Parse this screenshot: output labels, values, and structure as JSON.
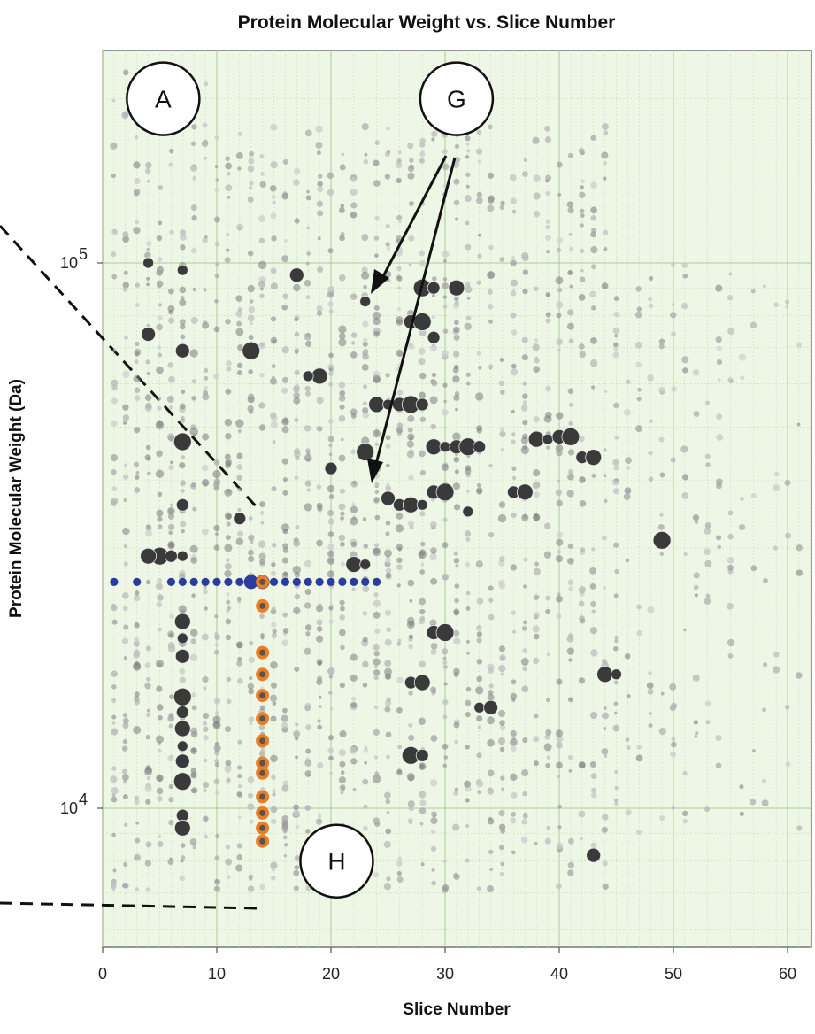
{
  "chart_data": {
    "type": "scatter",
    "title": "Protein Molecular Weight vs. Slice Number",
    "xlabel": "Slice Number",
    "ylabel": "Protein Molecular Weight (Da)",
    "xlim": [
      0,
      62
    ],
    "ylim": [
      5500,
      280000
    ],
    "y_scale": "log",
    "x_ticks": [
      "0",
      "10",
      "20",
      "30",
      "40",
      "50",
      "60"
    ],
    "y_ticks": [
      {
        "base": "10",
        "exp": "5",
        "value": 100000
      },
      {
        "base": "10",
        "exp": "4",
        "value": 10000
      }
    ],
    "grid": true,
    "background_color": "#eef6e6",
    "grid_color": "#c5e0b4",
    "colors": {
      "gray": "#9b9b9b",
      "dark": "#3a3a3a",
      "blue": "#2a3d9e",
      "orange": "#ee7d22"
    },
    "highlight_series": [
      {
        "color": "blue",
        "points": [
          [
            1,
            26000
          ],
          [
            3,
            26000
          ],
          [
            6,
            26000
          ],
          [
            7,
            26000
          ],
          [
            8,
            26000
          ],
          [
            9,
            26000
          ],
          [
            10,
            26000
          ],
          [
            11,
            26000
          ],
          [
            12,
            26000
          ],
          [
            13,
            26000
          ],
          [
            14,
            26000
          ],
          [
            15,
            26000
          ],
          [
            16,
            26000
          ],
          [
            17,
            26000
          ],
          [
            18,
            26000
          ],
          [
            19,
            26000
          ],
          [
            20,
            26000
          ],
          [
            21,
            26000
          ],
          [
            22,
            26000
          ],
          [
            23,
            26000
          ],
          [
            24,
            26000
          ]
        ]
      },
      {
        "color": "orange",
        "points": [
          [
            14,
            26000
          ],
          [
            14,
            23500
          ],
          [
            14,
            19300
          ],
          [
            14,
            17600
          ],
          [
            14,
            16100
          ],
          [
            14,
            14600
          ],
          [
            14,
            13300
          ],
          [
            14,
            12100
          ],
          [
            14,
            11600
          ],
          [
            14,
            10500
          ],
          [
            14,
            9800
          ],
          [
            14,
            9200
          ],
          [
            14,
            8700
          ]
        ]
      }
    ],
    "dark_points": [
      [
        4,
        100000
      ],
      [
        4,
        74000
      ],
      [
        5,
        29000
      ],
      [
        6,
        29000
      ],
      [
        4,
        29000
      ],
      [
        7,
        29000
      ],
      [
        7,
        69000
      ],
      [
        7,
        47000
      ],
      [
        7,
        36000
      ],
      [
        7,
        22000
      ],
      [
        7,
        20500
      ],
      [
        7,
        19000
      ],
      [
        7,
        16000
      ],
      [
        7,
        15000
      ],
      [
        7,
        14000
      ],
      [
        7,
        13000
      ],
      [
        7,
        12200
      ],
      [
        7,
        11200
      ],
      [
        7,
        9700
      ],
      [
        7,
        9200
      ],
      [
        7,
        97000
      ],
      [
        13,
        26000
      ],
      [
        13,
        69000
      ],
      [
        12,
        34000
      ],
      [
        19,
        62000
      ],
      [
        18,
        62000
      ],
      [
        17,
        95000
      ],
      [
        28,
        90000
      ],
      [
        29,
        90000
      ],
      [
        31,
        90000
      ],
      [
        23,
        85000
      ],
      [
        27,
        78000
      ],
      [
        28,
        78000
      ],
      [
        29,
        73000
      ],
      [
        24,
        55000
      ],
      [
        25,
        55000
      ],
      [
        26,
        55000
      ],
      [
        27,
        55000
      ],
      [
        28,
        55000
      ],
      [
        29,
        46000
      ],
      [
        30,
        46000
      ],
      [
        31,
        46000
      ],
      [
        32,
        46000
      ],
      [
        33,
        46000
      ],
      [
        38,
        47500
      ],
      [
        39,
        47500
      ],
      [
        40,
        48000
      ],
      [
        41,
        48000
      ],
      [
        42,
        44000
      ],
      [
        43,
        44000
      ],
      [
        32,
        35000
      ],
      [
        29,
        21000
      ],
      [
        30,
        21000
      ],
      [
        27,
        17000
      ],
      [
        28,
        17000
      ],
      [
        33,
        15300
      ],
      [
        34,
        15300
      ],
      [
        27,
        12500
      ],
      [
        28,
        12500
      ],
      [
        44,
        17600
      ],
      [
        45,
        17600
      ],
      [
        43,
        8200
      ],
      [
        49,
        31000
      ],
      [
        26,
        36000
      ],
      [
        27,
        36000
      ],
      [
        28,
        36000
      ],
      [
        25,
        37000
      ],
      [
        23,
        45000
      ],
      [
        20,
        42000
      ],
      [
        22,
        28000
      ],
      [
        23,
        28000
      ],
      [
        29,
        38000
      ],
      [
        30,
        38000
      ],
      [
        36,
        38000
      ],
      [
        37,
        38000
      ]
    ],
    "annotations": [
      {
        "label": "A",
        "x": 5.3,
        "y": 200000
      },
      {
        "label": "G",
        "x": 31,
        "y": 200000
      },
      {
        "label": "H",
        "x": 20.5,
        "y": 8000
      }
    ]
  }
}
